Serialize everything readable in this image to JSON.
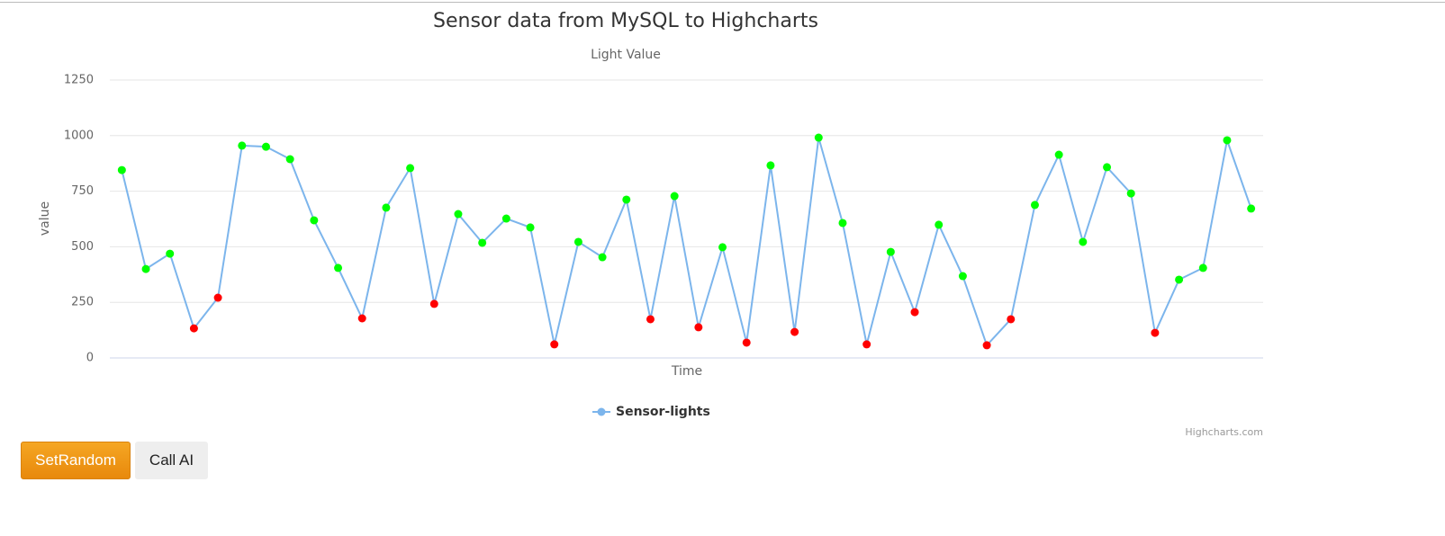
{
  "chart_data": {
    "type": "line",
    "title": "Sensor data from MySQL to Highcharts",
    "subtitle": "Light Value",
    "x_axis_label": "Time",
    "y_axis_label": "value",
    "ylim": [
      0,
      1250
    ],
    "yticks": [
      0,
      250,
      500,
      750,
      1000,
      1250
    ],
    "grid": true,
    "series": [
      {
        "name": "Sensor-lights",
        "color": "#7cb5ec",
        "values": [
          845,
          400,
          469,
          133,
          271,
          955,
          950,
          894,
          619,
          405,
          178,
          676,
          854,
          243,
          647,
          518,
          627,
          587,
          61,
          522,
          453,
          712,
          174,
          728,
          138,
          498,
          69,
          866,
          117,
          991,
          607,
          61,
          477,
          206,
          599,
          368,
          57,
          174,
          688,
          914,
          522,
          858,
          740,
          113,
          352,
          405,
          979,
          672
        ],
        "point_colors": [
          "#00ff00",
          "#00ff00",
          "#00ff00",
          "#ff0000",
          "#ff0000",
          "#00ff00",
          "#00ff00",
          "#00ff00",
          "#00ff00",
          "#00ff00",
          "#ff0000",
          "#00ff00",
          "#00ff00",
          "#ff0000",
          "#00ff00",
          "#00ff00",
          "#00ff00",
          "#00ff00",
          "#ff0000",
          "#00ff00",
          "#00ff00",
          "#00ff00",
          "#ff0000",
          "#00ff00",
          "#ff0000",
          "#00ff00",
          "#ff0000",
          "#00ff00",
          "#ff0000",
          "#00ff00",
          "#00ff00",
          "#ff0000",
          "#00ff00",
          "#ff0000",
          "#00ff00",
          "#00ff00",
          "#ff0000",
          "#ff0000",
          "#00ff00",
          "#00ff00",
          "#00ff00",
          "#00ff00",
          "#00ff00",
          "#ff0000",
          "#00ff00",
          "#00ff00",
          "#00ff00",
          "#00ff00"
        ]
      }
    ],
    "credits": "Highcharts.com"
  },
  "buttons": [
    "SetRandom",
    "Call AI"
  ]
}
